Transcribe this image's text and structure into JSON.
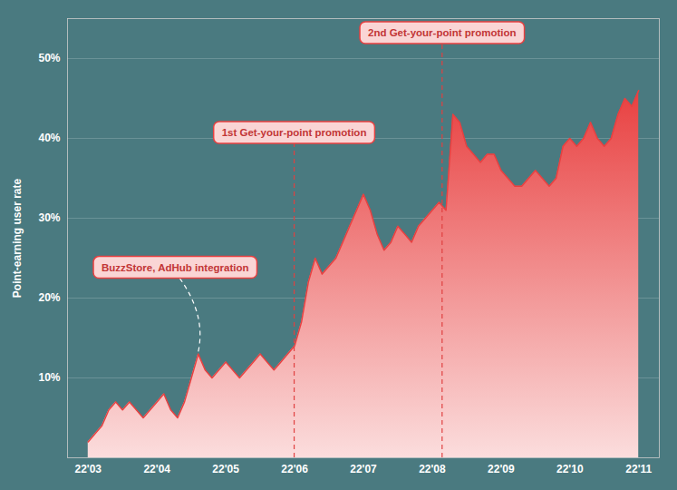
{
  "chart_data": {
    "type": "area",
    "y_label": "Point-earning user rate",
    "x": [
      0,
      0.1,
      0.2,
      0.3,
      0.4,
      0.5,
      0.6,
      0.7,
      0.8,
      0.9,
      1.0,
      1.1,
      1.2,
      1.3,
      1.4,
      1.5,
      1.6,
      1.7,
      1.8,
      1.9,
      2.0,
      2.1,
      2.2,
      2.3,
      2.4,
      2.5,
      2.6,
      2.7,
      2.8,
      2.9,
      3.0,
      3.1,
      3.2,
      3.3,
      3.4,
      3.5,
      3.6,
      3.7,
      3.8,
      3.9,
      4.0,
      4.1,
      4.2,
      4.3,
      4.4,
      4.5,
      4.6,
      4.7,
      4.8,
      4.9,
      5.0,
      5.1,
      5.2,
      5.3,
      5.4,
      5.5,
      5.6,
      5.7,
      5.8,
      5.9,
      6.0,
      6.1,
      6.2,
      6.3,
      6.4,
      6.5,
      6.6,
      6.7,
      6.8,
      6.9,
      7.0,
      7.1,
      7.2,
      7.3,
      7.4,
      7.5,
      7.6,
      7.7,
      7.8,
      7.9,
      8.0
    ],
    "values": [
      2,
      3,
      4,
      6,
      7,
      6,
      7,
      6,
      5,
      6,
      7,
      8,
      6,
      5,
      7,
      10,
      13,
      11,
      10,
      11,
      12,
      11,
      10,
      11,
      12,
      13,
      12,
      11,
      12,
      13,
      14,
      17,
      22,
      25,
      23,
      24,
      25,
      27,
      29,
      31,
      33,
      31,
      28,
      26,
      27,
      29,
      28,
      27,
      29,
      30,
      31,
      32,
      31,
      43,
      42,
      39,
      38,
      37,
      38,
      38,
      36,
      35,
      34,
      34,
      35,
      36,
      35,
      34,
      35,
      39,
      40,
      39,
      40,
      42,
      40,
      39,
      40,
      43,
      45,
      44,
      46
    ],
    "color": "#e84040",
    "xlim": [
      -0.3,
      8.3
    ],
    "xticks": [
      {
        "value": 0,
        "label": "22'03"
      },
      {
        "value": 1,
        "label": "22'04"
      },
      {
        "value": 2,
        "label": "22'05"
      },
      {
        "value": 3,
        "label": "22'06"
      },
      {
        "value": 4,
        "label": "22'07"
      },
      {
        "value": 5,
        "label": "22'08"
      },
      {
        "value": 6,
        "label": "22'09"
      },
      {
        "value": 7,
        "label": "22'10"
      },
      {
        "value": 8,
        "label": "22'11"
      }
    ],
    "ylim": [
      0,
      55
    ],
    "yticks": [
      {
        "value": 10,
        "label": "10%"
      },
      {
        "value": 20,
        "label": "20%"
      },
      {
        "value": 30,
        "label": "30%"
      },
      {
        "value": 40,
        "label": "40%"
      },
      {
        "value": 50,
        "label": "50%"
      }
    ],
    "grid": true,
    "annotations": [
      {
        "text": "BuzzStore, AdHub integration",
        "x": 1.6,
        "y": 13,
        "color": "#ffffff",
        "line_style": "dashed"
      },
      {
        "text": "1st Get-your-point promotion",
        "x": 3.0,
        "color": "#e04040",
        "line_style": "dashed"
      },
      {
        "text": "2nd Get-your-point promotion",
        "x": 5.15,
        "color": "#e04040",
        "line_style": "dashed"
      }
    ]
  }
}
